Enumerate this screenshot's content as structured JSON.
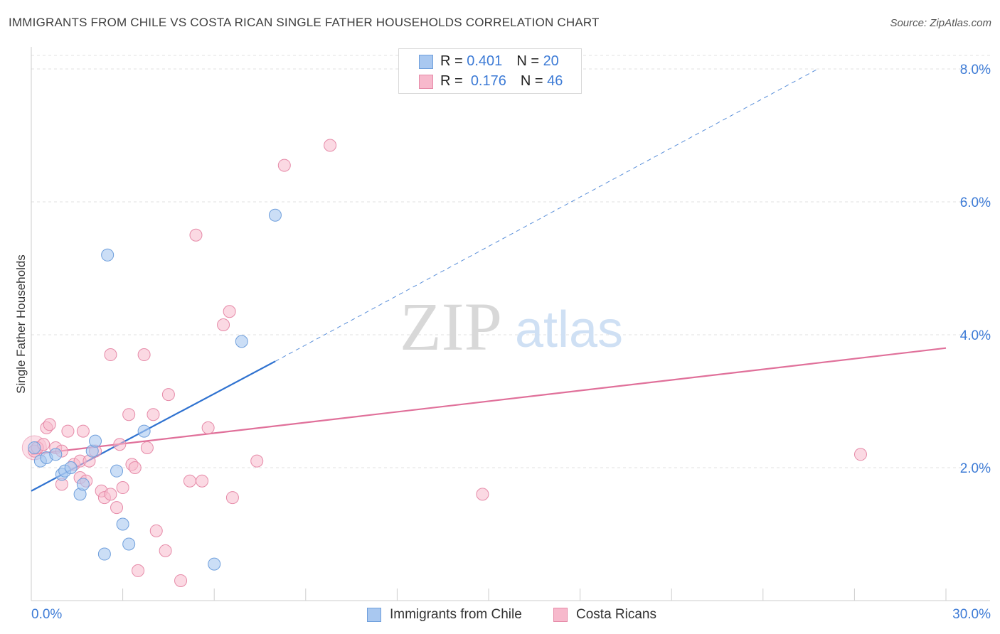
{
  "header": {
    "title": "IMMIGRANTS FROM CHILE VS COSTA RICAN SINGLE FATHER HOUSEHOLDS CORRELATION CHART",
    "source": "Source: ZipAtlas.com"
  },
  "watermark": {
    "zip": "ZIP",
    "atlas": "atlas"
  },
  "legend_top": {
    "rows": [
      {
        "r_label": "R =",
        "r_value": "0.401",
        "n_label": "N =",
        "n_value": "20"
      },
      {
        "r_label": "R =",
        "r_value": "0.176",
        "n_label": "N =",
        "n_value": "46"
      }
    ]
  },
  "legend_bottom": {
    "items": [
      {
        "label": "Immigrants from Chile"
      },
      {
        "label": "Costa Ricans"
      }
    ]
  },
  "colors": {
    "chile_fill": "#a9c8f0",
    "chile_stroke": "#6f9fdc",
    "chile_line": "#2f72d0",
    "costa_fill": "#f7b9cc",
    "costa_stroke": "#e68aa8",
    "costa_line": "#e0709a",
    "axis_label": "#3d7bd6",
    "grid": "#e1e1e1"
  },
  "chart_data": {
    "type": "scatter",
    "title": "IMMIGRANTS FROM CHILE VS COSTA RICAN SINGLE FATHER HOUSEHOLDS CORRELATION CHART",
    "xlabel": "",
    "ylabel": "Single Father Households",
    "xlim": [
      0,
      30
    ],
    "ylim": [
      0,
      8.2
    ],
    "x_tick_labels": [
      "0.0%",
      "30.0%"
    ],
    "y_tick_labels": [
      "2.0%",
      "4.0%",
      "6.0%",
      "8.0%"
    ],
    "y_ticks": [
      2,
      4,
      6,
      8
    ],
    "grid": true,
    "legend_placement": "bottom",
    "series": [
      {
        "name": "Immigrants from Chile",
        "points": [
          [
            0.1,
            2.3
          ],
          [
            0.3,
            2.1
          ],
          [
            0.5,
            2.15
          ],
          [
            0.8,
            2.2
          ],
          [
            1.0,
            1.9
          ],
          [
            1.1,
            1.95
          ],
          [
            1.3,
            2.0
          ],
          [
            1.6,
            1.6
          ],
          [
            1.7,
            1.75
          ],
          [
            2.0,
            2.25
          ],
          [
            2.1,
            2.4
          ],
          [
            2.4,
            0.7
          ],
          [
            2.5,
            5.2
          ],
          [
            2.8,
            1.95
          ],
          [
            3.0,
            1.15
          ],
          [
            3.2,
            0.85
          ],
          [
            3.7,
            2.55
          ],
          [
            6.0,
            0.55
          ],
          [
            6.9,
            3.9
          ],
          [
            8.0,
            5.8
          ]
        ],
        "trend": {
          "x": [
            0,
            8.0
          ],
          "y": [
            1.65,
            3.6
          ],
          "extended": {
            "x": [
              8.0,
              25.8
            ],
            "y": [
              3.6,
              8.0
            ]
          }
        }
      },
      {
        "name": "Costa Ricans",
        "points": [
          [
            0.1,
            2.25
          ],
          [
            0.2,
            2.3
          ],
          [
            0.4,
            2.35
          ],
          [
            0.5,
            2.6
          ],
          [
            0.6,
            2.65
          ],
          [
            0.8,
            2.3
          ],
          [
            1.0,
            2.25
          ],
          [
            1.0,
            1.75
          ],
          [
            1.2,
            2.55
          ],
          [
            1.4,
            2.05
          ],
          [
            1.6,
            2.1
          ],
          [
            1.6,
            1.85
          ],
          [
            1.7,
            2.55
          ],
          [
            1.8,
            1.8
          ],
          [
            1.9,
            2.1
          ],
          [
            2.1,
            2.25
          ],
          [
            2.3,
            1.65
          ],
          [
            2.4,
            1.55
          ],
          [
            2.6,
            1.6
          ],
          [
            2.6,
            3.7
          ],
          [
            2.8,
            1.4
          ],
          [
            2.9,
            2.35
          ],
          [
            3.0,
            1.7
          ],
          [
            3.2,
            2.8
          ],
          [
            3.3,
            2.05
          ],
          [
            3.4,
            2.0
          ],
          [
            3.5,
            0.45
          ],
          [
            3.7,
            3.7
          ],
          [
            3.8,
            2.3
          ],
          [
            4.0,
            2.8
          ],
          [
            4.1,
            1.05
          ],
          [
            4.4,
            0.75
          ],
          [
            4.5,
            3.1
          ],
          [
            4.9,
            0.3
          ],
          [
            5.2,
            1.8
          ],
          [
            5.4,
            5.5
          ],
          [
            5.6,
            1.8
          ],
          [
            5.8,
            2.6
          ],
          [
            6.3,
            4.15
          ],
          [
            6.5,
            4.35
          ],
          [
            6.6,
            1.55
          ],
          [
            7.4,
            2.1
          ],
          [
            8.3,
            6.55
          ],
          [
            9.8,
            6.85
          ],
          [
            14.8,
            1.6
          ],
          [
            27.2,
            2.2
          ]
        ],
        "trend": {
          "x": [
            0,
            30
          ],
          "y": [
            2.2,
            3.8
          ]
        }
      }
    ]
  }
}
